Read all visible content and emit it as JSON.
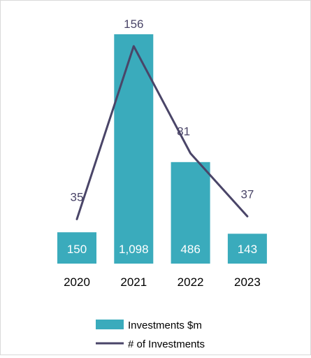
{
  "chart_data": {
    "type": "bar",
    "categories": [
      "2020",
      "2021",
      "2022",
      "2023"
    ],
    "series": [
      {
        "name": "Investments $m",
        "type": "bar",
        "axis": "primary",
        "values": [
          150,
          1098,
          486,
          143
        ],
        "labels": [
          "150",
          "1,098",
          "486",
          "143"
        ],
        "color": "#3aabbc"
      },
      {
        "name": "# of Investments",
        "type": "line",
        "axis": "secondary",
        "values": [
          35,
          156,
          81,
          37
        ],
        "labels": [
          "35",
          "156",
          "81",
          "37"
        ],
        "color": "#4a4568"
      }
    ],
    "legend_position": "bottom",
    "grid": false,
    "bar_label_color": "#ffffff",
    "line_label_color": "#4a4568",
    "category_label_color": "#000000"
  }
}
